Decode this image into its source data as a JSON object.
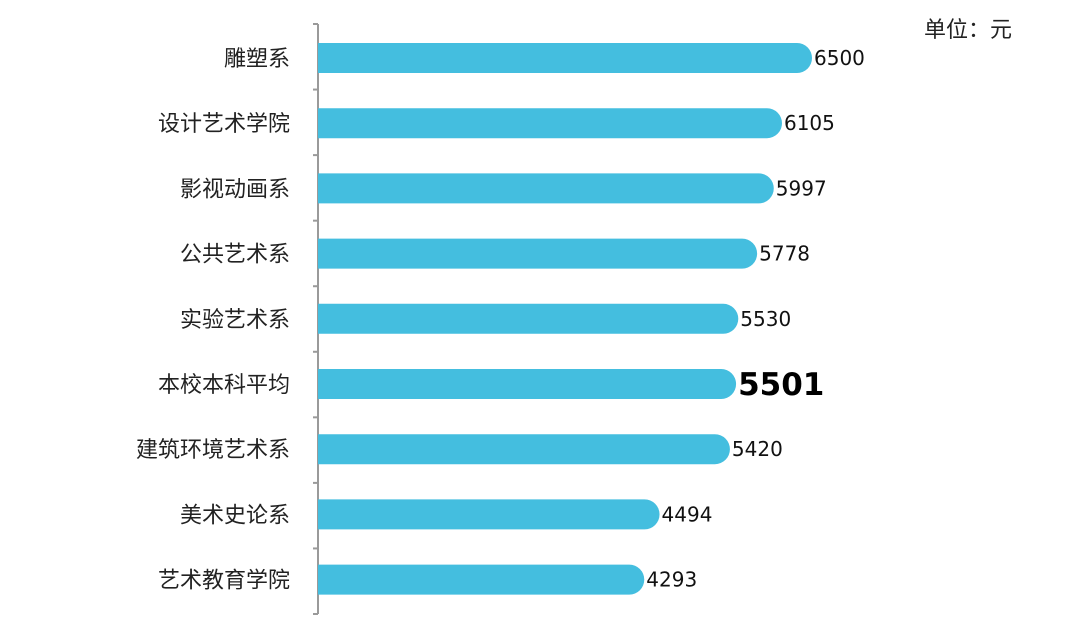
{
  "unit_label": "单位：元",
  "chart_data": {
    "type": "bar",
    "orientation": "horizontal",
    "categories": [
      "雕塑系",
      "设计艺术学院",
      "影视动画系",
      "公共艺术系",
      "实验艺术系",
      "本校本科平均",
      "建筑环境艺术系",
      "美术史论系",
      "艺术教育学院"
    ],
    "values": [
      6500,
      6105,
      5997,
      5778,
      5530,
      5501,
      5420,
      4494,
      4293
    ],
    "value_labels": [
      "6500",
      "6105",
      "5997",
      "5778",
      "5530",
      "5501",
      "5420",
      "4494",
      "4293"
    ],
    "highlight": "本校本科平均",
    "xlim": [
      0,
      6500
    ],
    "grid": false,
    "colors": {
      "bar": "#44BEDF",
      "axis": "#9A9A9A"
    }
  }
}
